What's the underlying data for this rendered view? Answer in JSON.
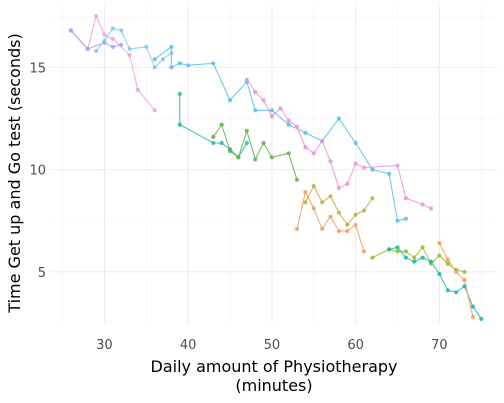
{
  "chart_data": {
    "type": "line",
    "title": "",
    "xlabel": "Daily amount of Physiotherapy",
    "xlabel_line2": "(minutes)",
    "ylabel": "Time Get up and Go test (seconds)",
    "xlim": [
      23.5,
      77
    ],
    "ylim": [
      2.5,
      18
    ],
    "x_ticks": [
      30,
      40,
      50,
      60,
      70
    ],
    "y_ticks": [
      5,
      10,
      15
    ],
    "grid": true,
    "legend": "none",
    "markers": true,
    "series": [
      {
        "color": "#f0a0e0",
        "x": [
          26,
          28,
          29,
          30,
          31,
          33,
          34,
          36
        ],
        "y": [
          16.8,
          15.9,
          17.5,
          16.6,
          16.4,
          15.6,
          13.9,
          12.9
        ]
      },
      {
        "color": "#a8a0f0",
        "x": [
          26,
          28,
          30,
          31,
          32
        ],
        "y": [
          16.8,
          15.9,
          16.2,
          16.0,
          16.1
        ]
      },
      {
        "color": "#7fc8f0",
        "x": [
          29,
          30,
          31,
          32,
          33,
          35,
          36,
          37,
          38
        ],
        "y": [
          15.8,
          16.3,
          16.9,
          16.8,
          15.9,
          16.0,
          15.0,
          15.4,
          15.7
        ]
      },
      {
        "color": "#56c0ec",
        "x": [
          36,
          38,
          38,
          39,
          40,
          43,
          45,
          47,
          48,
          50,
          52,
          54,
          56,
          58,
          60,
          62,
          64,
          65,
          66
        ],
        "y": [
          15.4,
          16.0,
          15.0,
          15.2,
          15.1,
          15.2,
          13.4,
          14.3,
          12.9,
          12.9,
          12.2,
          11.8,
          11.4,
          12.5,
          11.3,
          10.0,
          9.8,
          7.5,
          7.6
        ]
      },
      {
        "color": "#f090d8",
        "x": [
          47,
          48,
          49,
          50,
          51,
          52,
          53,
          54,
          55,
          56,
          57,
          58,
          59,
          60,
          61,
          65,
          66,
          68,
          69
        ],
        "y": [
          14.4,
          13.8,
          13.4,
          12.6,
          13.0,
          12.4,
          12.1,
          11.1,
          10.8,
          11.4,
          10.4,
          9.1,
          9.3,
          10.3,
          10.1,
          10.2,
          8.6,
          8.3,
          8.1
        ]
      },
      {
        "color": "#2eb8a0",
        "x": [
          39,
          39,
          43,
          44,
          45,
          46,
          47
        ],
        "y": [
          13.7,
          12.2,
          11.3,
          11.3,
          11.0,
          10.6,
          11.3
        ]
      },
      {
        "color": "#66b050",
        "x": [
          43,
          44,
          45,
          46,
          47,
          48,
          49,
          50,
          52,
          53
        ],
        "y": [
          11.6,
          12.2,
          10.9,
          10.6,
          11.9,
          10.5,
          11.3,
          10.6,
          10.8,
          9.5
        ]
      },
      {
        "color": "#c0b040",
        "x": [
          54,
          55,
          56,
          57,
          58,
          59,
          60,
          61,
          62
        ],
        "y": [
          8.4,
          9.2,
          8.4,
          8.7,
          7.9,
          7.3,
          7.8,
          8.0,
          8.6
        ]
      },
      {
        "color": "#f0a060",
        "x": [
          53,
          54,
          55,
          56,
          57,
          58,
          59,
          60,
          61
        ],
        "y": [
          7.1,
          8.9,
          8.1,
          7.1,
          7.7,
          7.0,
          7.0,
          7.3,
          6.0
        ]
      },
      {
        "color": "#9cb830",
        "x": [
          62,
          64,
          65,
          66,
          67,
          68,
          69,
          70,
          71,
          72,
          73
        ],
        "y": [
          5.7,
          6.1,
          6.0,
          6.0,
          5.7,
          6.2,
          5.4,
          5.8,
          5.4,
          5.1,
          5.0
        ]
      },
      {
        "color": "#20b8a8",
        "x": [
          64,
          65,
          66,
          67,
          68,
          69,
          70,
          71,
          72,
          73,
          74,
          75
        ],
        "y": [
          6.1,
          6.2,
          5.7,
          5.5,
          5.7,
          5.5,
          4.9,
          4.1,
          4.0,
          4.3,
          3.3,
          2.7
        ]
      },
      {
        "color": "#f4a050",
        "x": [
          70,
          71,
          72,
          73,
          74
        ],
        "y": [
          6.4,
          5.6,
          5.0,
          4.6,
          2.8
        ]
      }
    ]
  }
}
